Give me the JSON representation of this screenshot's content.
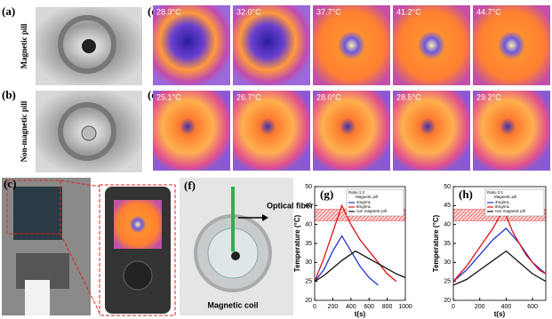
{
  "panels": {
    "a": "(a)",
    "b": "(b)",
    "c": "(c)",
    "d": "(d)",
    "e": "(e)",
    "f": "(f)"
  },
  "labels": {
    "magnetic_pill": "Magnetic pill",
    "non_magnetic_pill": "Non-magnetic pill",
    "optical_fiber": "Optical fiber",
    "magnetic_coil": "Magnetic coil"
  },
  "thermal": {
    "d": [
      "28.3°C",
      "32.0°C",
      "37.7°C",
      "41.2°C",
      "44.7°C"
    ],
    "e": [
      "25.1°C",
      "26.7°C",
      "28.0°C",
      "28.5°C",
      "29.2°C"
    ]
  },
  "chart_data": [
    {
      "type": "line",
      "label": "(g)",
      "xlabel": "t(s)",
      "ylabel": "Temperature (°C)",
      "legend_title": "Ratio 1:2",
      "legend_subtitle": "Magnetic pill",
      "xlim": [
        0,
        1000
      ],
      "xticks": [
        0,
        200,
        400,
        600,
        800,
        1000
      ],
      "ylim": [
        20,
        50
      ],
      "yticks": [
        20,
        25,
        30,
        35,
        40,
        45,
        50
      ],
      "band": [
        41,
        44
      ],
      "band_color": "#e53030",
      "series": [
        {
          "name": "4mg/mL",
          "color": "#2233cc",
          "x": [
            0,
            100,
            200,
            300,
            400,
            500,
            600,
            700
          ],
          "values": [
            25,
            28,
            33,
            37,
            33,
            29,
            26,
            24
          ]
        },
        {
          "name": "8mg/mL",
          "color": "#e01010",
          "x": [
            0,
            100,
            200,
            300,
            400,
            500,
            600,
            700,
            800,
            900
          ],
          "values": [
            25,
            31,
            38,
            45,
            40,
            36,
            33,
            30,
            27,
            25
          ]
        },
        {
          "name": "non magnetic pill",
          "color": "#111111",
          "x": [
            0,
            100,
            200,
            300,
            450,
            600,
            750,
            900,
            1000
          ],
          "values": [
            25,
            26.5,
            28.5,
            30.5,
            33,
            31,
            29,
            27,
            26
          ]
        }
      ]
    },
    {
      "type": "line",
      "label": "(h)",
      "xlabel": "t(s)",
      "ylabel": "Temperature (°C)",
      "legend_title": "Ratio 2:1",
      "legend_subtitle": "Magnetic pill",
      "xlim": [
        0,
        700
      ],
      "xticks": [
        0,
        200,
        400,
        600
      ],
      "ylim": [
        20,
        50
      ],
      "yticks": [
        20,
        25,
        30,
        35,
        40,
        45,
        50
      ],
      "band": [
        41,
        44
      ],
      "band_color": "#e53030",
      "series": [
        {
          "name": "4mg/mL",
          "color": "#2233cc",
          "x": [
            0,
            100,
            200,
            300,
            400,
            500,
            600,
            700
          ],
          "values": [
            25,
            28,
            32,
            36,
            39,
            35,
            30,
            27
          ]
        },
        {
          "name": "8mg/mL",
          "color": "#e01010",
          "x": [
            0,
            100,
            200,
            300,
            380,
            450,
            550,
            650,
            700
          ],
          "values": [
            25,
            29,
            34,
            39,
            44,
            38,
            32,
            28,
            27
          ]
        },
        {
          "name": "non magnetic pill",
          "color": "#111111",
          "x": [
            0,
            100,
            200,
            300,
            400,
            500,
            600,
            700
          ],
          "values": [
            24,
            25.5,
            28,
            30.5,
            33,
            30,
            27,
            25
          ]
        }
      ]
    }
  ]
}
